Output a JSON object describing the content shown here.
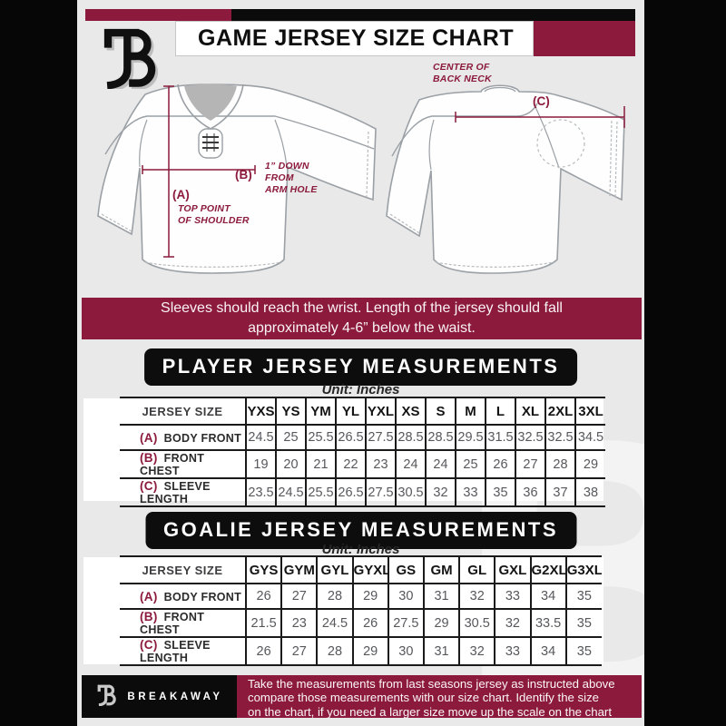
{
  "page": {
    "bg": "#e9e9e9",
    "accent_maroon": "#8b1a3c",
    "accent_black": "#0c0c0c"
  },
  "header": {
    "title": "GAME JERSEY SIZE CHART"
  },
  "diagram": {
    "front": {
      "key_a": "(A)",
      "note_a": "TOP POINT\nOF SHOULDER",
      "key_b": "(B)",
      "note_b": "1” DOWN\nFROM\nARM HOLE"
    },
    "back": {
      "key_c": "(C)",
      "note_c": "CENTER OF\nBACK NECK"
    }
  },
  "banner": {
    "text": "Sleeves should reach the wrist. Length of the jersey should fall\napproximately 4-6” below the waist."
  },
  "player_section": {
    "heading": "PLAYER JERSEY MEASUREMENTS",
    "unit": "Unit: Inches",
    "table": {
      "size_label": "JERSEY SIZE",
      "columns": [
        "YXS",
        "YS",
        "YM",
        "YL",
        "YXL",
        "XS",
        "S",
        "M",
        "L",
        "XL",
        "2XL",
        "3XL"
      ],
      "rows": [
        {
          "key": "(A)",
          "label": "BODY FRONT",
          "values": [
            "24.5",
            "25",
            "25.5",
            "26.5",
            "27.5",
            "28.5",
            "28.5",
            "29.5",
            "31.5",
            "32.5",
            "32.5",
            "34.5"
          ]
        },
        {
          "key": "(B)",
          "label": "FRONT CHEST",
          "values": [
            "19",
            "20",
            "21",
            "22",
            "23",
            "24",
            "24",
            "25",
            "26",
            "27",
            "28",
            "29"
          ]
        },
        {
          "key": "(C)",
          "label": "SLEEVE LENGTH",
          "values": [
            "23.5",
            "24.5",
            "25.5",
            "26.5",
            "27.5",
            "30.5",
            "32",
            "33",
            "35",
            "36",
            "37",
            "38"
          ]
        }
      ]
    }
  },
  "goalie_section": {
    "heading": "GOALIE JERSEY MEASUREMENTS",
    "unit": "Unit: Inches",
    "table": {
      "size_label": "JERSEY SIZE",
      "columns": [
        "GYS",
        "GYM",
        "GYL",
        "GYXL",
        "GS",
        "GM",
        "GL",
        "GXL",
        "G2XL",
        "G3XL"
      ],
      "rows": [
        {
          "key": "(A)",
          "label": "BODY FRONT",
          "values": [
            "26",
            "27",
            "28",
            "29",
            "30",
            "31",
            "32",
            "33",
            "34",
            "35"
          ]
        },
        {
          "key": "(B)",
          "label": "FRONT CHEST",
          "values": [
            "21.5",
            "23",
            "24.5",
            "26",
            "27.5",
            "29",
            "30.5",
            "32",
            "33.5",
            "35"
          ]
        },
        {
          "key": "(C)",
          "label": "SLEEVE LENGTH",
          "values": [
            "26",
            "27",
            "28",
            "29",
            "30",
            "31",
            "32",
            "33",
            "34",
            "35"
          ]
        }
      ]
    }
  },
  "footer": {
    "brand": "BREAKAWAY",
    "text": "Take the measurements from last seasons jersey as instructed above\ncompare those measurements  with our size chart. Identify the size\non the chart, if you need a larger size move up the scale on the chart"
  },
  "watermark": "B"
}
